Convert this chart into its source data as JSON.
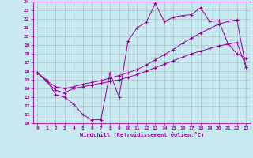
{
  "xlabel": "Windchill (Refroidissement éolien,°C)",
  "line_color": "#990099",
  "bg_color": "#c8e8f0",
  "grid_color": "#a0b8c0",
  "xlim": [
    -0.5,
    23.5
  ],
  "ylim": [
    10,
    24
  ],
  "xticks": [
    0,
    1,
    2,
    3,
    4,
    5,
    6,
    7,
    8,
    9,
    10,
    11,
    12,
    13,
    14,
    15,
    16,
    17,
    18,
    19,
    20,
    21,
    22,
    23
  ],
  "yticks": [
    10,
    11,
    12,
    13,
    14,
    15,
    16,
    17,
    18,
    19,
    20,
    21,
    22,
    23,
    24
  ],
  "curve1_x": [
    0,
    1,
    2,
    3,
    4,
    5,
    6,
    7,
    8,
    9,
    10,
    11,
    12,
    13,
    14,
    15,
    16,
    17,
    18,
    19,
    20,
    21,
    22,
    23
  ],
  "curve1_y": [
    15.8,
    15.0,
    13.3,
    13.0,
    12.2,
    11.0,
    10.4,
    10.4,
    15.8,
    13.0,
    19.5,
    21.0,
    21.6,
    23.8,
    21.7,
    22.2,
    22.4,
    22.5,
    23.3,
    21.7,
    21.8,
    19.2,
    18.0,
    17.5
  ],
  "curve2_x": [
    0,
    1,
    2,
    3,
    4,
    5,
    6,
    7,
    8,
    9,
    10,
    11,
    12,
    13,
    14,
    15,
    16,
    17,
    18,
    19,
    20,
    21,
    22,
    23
  ],
  "curve2_y": [
    15.8,
    14.9,
    14.2,
    14.0,
    14.2,
    14.5,
    14.7,
    14.9,
    15.2,
    15.5,
    15.8,
    16.2,
    16.7,
    17.3,
    17.9,
    18.5,
    19.2,
    19.8,
    20.4,
    20.9,
    21.4,
    21.7,
    21.9,
    16.5
  ],
  "curve3_x": [
    0,
    1,
    2,
    3,
    4,
    5,
    6,
    7,
    8,
    9,
    10,
    11,
    12,
    13,
    14,
    15,
    16,
    17,
    18,
    19,
    20,
    21,
    22,
    23
  ],
  "curve3_y": [
    15.8,
    14.8,
    13.8,
    13.5,
    14.0,
    14.2,
    14.4,
    14.6,
    14.8,
    15.0,
    15.3,
    15.6,
    16.0,
    16.4,
    16.8,
    17.2,
    17.6,
    18.0,
    18.3,
    18.6,
    18.9,
    19.1,
    19.3,
    16.5
  ]
}
